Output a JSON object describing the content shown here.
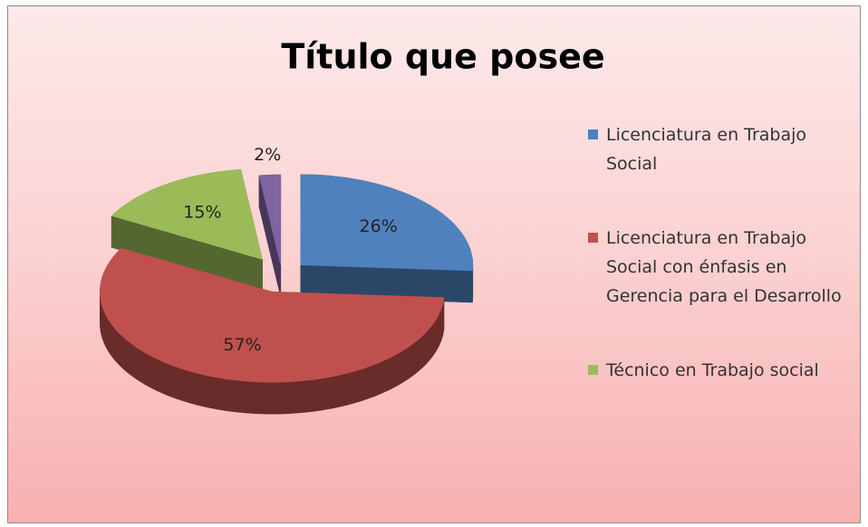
{
  "chart_data": {
    "type": "pie",
    "title": "Título que posee",
    "categories": [
      "Licenciatura en Trabajo Social",
      "Licenciatura en Trabajo Social con énfasis en Gerencia para el Desarrollo",
      "Técnico en Trabajo social",
      null
    ],
    "values": [
      26,
      57,
      15,
      2
    ],
    "value_labels": [
      "26%",
      "57%",
      "15%",
      "2%"
    ],
    "colors": [
      "#4f81bd",
      "#c0504d",
      "#9bbb59",
      "#8064a2"
    ],
    "legend": "right"
  }
}
